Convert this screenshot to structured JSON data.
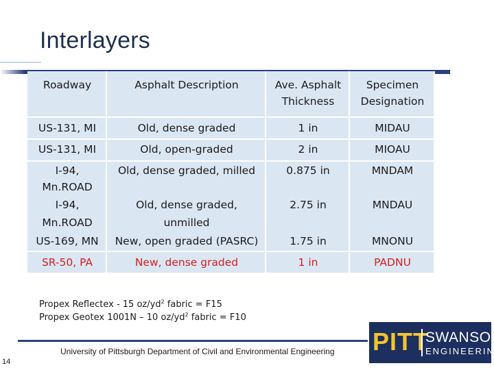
{
  "slide": {
    "title": "Interlayers",
    "page_number": "14",
    "footer": "University of Pittsburgh Department of Civil and Environmental Engineering"
  },
  "table": {
    "headers": {
      "roadway": "Roadway",
      "asphalt_description": "Asphalt Description",
      "thickness_line1": "Ave. Asphalt",
      "thickness_line2": "Thickness",
      "designation_line1": "Specimen",
      "designation_line2": "Designation"
    },
    "rows": [
      {
        "roadway": "US-131, MI",
        "description": "Old, dense graded",
        "thickness": "1 in",
        "designation": "MIDAU"
      },
      {
        "roadway": "US-131, MI",
        "description": "Old, open-graded",
        "thickness": "2 in",
        "designation": "MIOAU"
      },
      {
        "roadway_line1": "I-94,",
        "roadway_line2": "Mn.ROAD",
        "description": "Old, dense graded, milled",
        "thickness": "0.875 in",
        "designation": "MNDAM"
      },
      {
        "roadway_line1": "I-94,",
        "roadway_line2": "Mn.ROAD",
        "description_line1": "Old, dense graded,",
        "description_line2": "unmilled",
        "thickness": "2.75 in",
        "designation": "MNDAU"
      },
      {
        "roadway": "US-169, MN",
        "description": "New, open graded (PASRC)",
        "thickness": "1.75 in",
        "designation": "MNONU"
      },
      {
        "roadway": "SR-50, PA",
        "description": "New, dense graded",
        "thickness": "1 in",
        "designation": "PADNU"
      }
    ]
  },
  "notes": {
    "line1_pre": "Propex Reflectex - 15 oz/yd",
    "line1_sup": "2",
    "line1_post": " fabric = F15",
    "line2_pre": "Propex Geotex 1001N – 10 oz/yd",
    "line2_sup": "2",
    "line2_post": " fabric = F10"
  },
  "logo": {
    "pitt": "PITT",
    "swanson": "SWANSON",
    "engineering": "ENGINEERING"
  },
  "colors": {
    "title": "#1f2f4f",
    "rule": "#2b3f7a",
    "cell_fill": "#dbe6f3",
    "highlight_text": "#d21f1f",
    "logo_bg": "#1c2f5e",
    "logo_accent": "#f0c430"
  }
}
